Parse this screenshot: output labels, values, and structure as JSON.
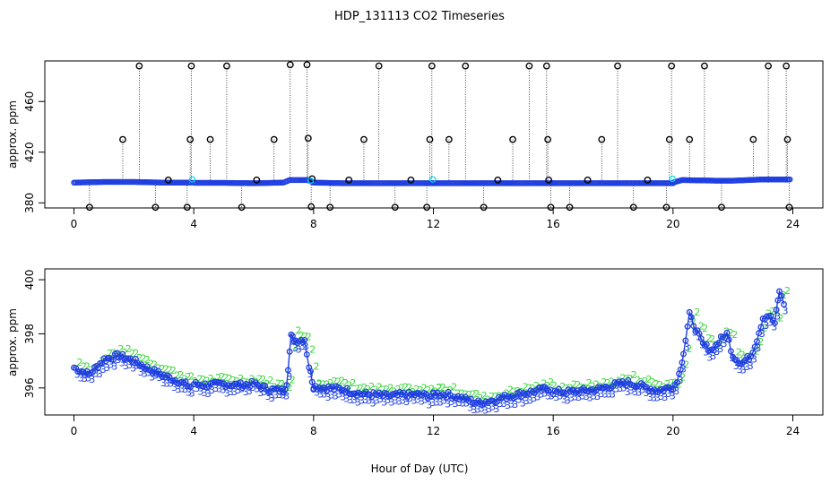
{
  "figure_title": "HDP_131113  CO2 Timeseries",
  "x_label": "Hour of Day (UTC)",
  "colors": {
    "raw": "#000000",
    "flagged": "#00d8e8",
    "averaged": "#1f3fe0",
    "label_3": "#1f3fe0",
    "label_2": "#3ad63a"
  },
  "chart_data": [
    {
      "type": "scatter",
      "ylabel": "approx. ppm",
      "xlim": [
        0,
        24
      ],
      "ylim": [
        376,
        492
      ],
      "x_ticks": [
        0,
        4,
        8,
        12,
        16,
        20,
        24
      ],
      "y_ticks": [
        380,
        420,
        460
      ],
      "baseline_segments": [
        {
          "x": [
            0.0,
            1.0,
            2.0,
            3.0,
            3.9
          ],
          "y": [
            396,
            396.5,
            396.5,
            396,
            396
          ]
        },
        {
          "x": [
            4.0,
            5.0,
            6.0,
            7.0,
            7.2,
            7.8,
            8.0
          ],
          "y": [
            395.8,
            395.8,
            395.5,
            396,
            398,
            398,
            396
          ]
        },
        {
          "x": [
            8.0,
            9.0,
            10.0,
            11.0,
            12.0
          ],
          "y": [
            396,
            395.5,
            395.5,
            395.5,
            395.5
          ]
        },
        {
          "x": [
            12.0,
            13.0,
            14.0,
            15.0,
            16.0
          ],
          "y": [
            395.5,
            395.5,
            395.5,
            395.5,
            395.5
          ]
        },
        {
          "x": [
            16.0,
            17.0,
            18.0,
            19.0,
            20.0
          ],
          "y": [
            395.5,
            395.5,
            395.5,
            395.5,
            395.5
          ]
        },
        {
          "x": [
            20.0,
            20.3,
            20.8,
            21.5,
            22.0,
            23.0,
            23.9
          ],
          "y": [
            396,
            398,
            397.8,
            397.5,
            397.5,
            398.5,
            398.5
          ]
        }
      ],
      "spikes": [
        {
          "x": 2.18,
          "y": 488
        },
        {
          "x": 3.92,
          "y": 488
        },
        {
          "x": 5.1,
          "y": 488
        },
        {
          "x": 7.22,
          "y": 489
        },
        {
          "x": 7.78,
          "y": 489
        },
        {
          "x": 10.18,
          "y": 488
        },
        {
          "x": 11.95,
          "y": 488
        },
        {
          "x": 13.07,
          "y": 488
        },
        {
          "x": 15.2,
          "y": 488
        },
        {
          "x": 15.78,
          "y": 488
        },
        {
          "x": 18.15,
          "y": 488
        },
        {
          "x": 19.95,
          "y": 488
        },
        {
          "x": 21.05,
          "y": 488
        },
        {
          "x": 23.18,
          "y": 488
        },
        {
          "x": 23.78,
          "y": 488
        },
        {
          "x": 1.63,
          "y": 430
        },
        {
          "x": 3.88,
          "y": 430
        },
        {
          "x": 4.55,
          "y": 430
        },
        {
          "x": 6.68,
          "y": 430
        },
        {
          "x": 7.82,
          "y": 431
        },
        {
          "x": 9.68,
          "y": 430
        },
        {
          "x": 11.88,
          "y": 430
        },
        {
          "x": 12.52,
          "y": 430
        },
        {
          "x": 14.65,
          "y": 430
        },
        {
          "x": 15.82,
          "y": 430
        },
        {
          "x": 17.62,
          "y": 430
        },
        {
          "x": 19.88,
          "y": 430
        },
        {
          "x": 20.55,
          "y": 430
        },
        {
          "x": 22.68,
          "y": 430
        },
        {
          "x": 23.82,
          "y": 430
        },
        {
          "x": 0.52,
          "y": 376.5
        },
        {
          "x": 2.72,
          "y": 376.5
        },
        {
          "x": 3.78,
          "y": 376.5
        },
        {
          "x": 5.6,
          "y": 376.5
        },
        {
          "x": 7.92,
          "y": 377
        },
        {
          "x": 8.55,
          "y": 376.5
        },
        {
          "x": 10.72,
          "y": 376.5
        },
        {
          "x": 11.78,
          "y": 376.5
        },
        {
          "x": 13.68,
          "y": 376.5
        },
        {
          "x": 15.92,
          "y": 376.5
        },
        {
          "x": 16.55,
          "y": 376.5
        },
        {
          "x": 18.68,
          "y": 376.5
        },
        {
          "x": 19.78,
          "y": 376.5
        },
        {
          "x": 21.62,
          "y": 376.5
        },
        {
          "x": 23.88,
          "y": 376.5
        },
        {
          "x": 3.15,
          "y": 398
        },
        {
          "x": 6.1,
          "y": 398
        },
        {
          "x": 9.18,
          "y": 398
        },
        {
          "x": 11.25,
          "y": 398
        },
        {
          "x": 14.15,
          "y": 398
        },
        {
          "x": 17.15,
          "y": 398
        },
        {
          "x": 19.15,
          "y": 398
        },
        {
          "x": 7.95,
          "y": 399
        },
        {
          "x": 15.85,
          "y": 398
        }
      ]
    },
    {
      "type": "line",
      "ylabel": "approx. ppm",
      "xlim": [
        0,
        24
      ],
      "ylim": [
        395,
        400.4
      ],
      "x_ticks": [
        0,
        4,
        8,
        12,
        16,
        20,
        24
      ],
      "y_ticks": [
        396,
        398,
        400
      ],
      "point_labels": [
        "3",
        "2"
      ],
      "series": [
        {
          "x": [
            0.0,
            0.5,
            1.0,
            1.5,
            2.0,
            2.5,
            3.0,
            3.5,
            3.9
          ],
          "y": [
            396.75,
            396.5,
            397.05,
            397.2,
            397.0,
            396.7,
            396.45,
            396.25,
            396.05
          ]
        },
        {
          "x": [
            4.0,
            4.5,
            5.0,
            5.5,
            6.0,
            6.5,
            7.0,
            7.1,
            7.25,
            7.4,
            7.7,
            7.85,
            8.0
          ],
          "y": [
            396.15,
            396.1,
            396.15,
            396.1,
            396.15,
            395.95,
            395.9,
            396.2,
            397.9,
            397.75,
            397.8,
            396.8,
            396.05
          ]
        },
        {
          "x": [
            8.0,
            8.5,
            9.0,
            9.5,
            10.0,
            10.5,
            11.0,
            11.5,
            12.0
          ],
          "y": [
            396.05,
            396.0,
            395.95,
            395.8,
            395.75,
            395.7,
            395.75,
            395.75,
            395.7
          ]
        },
        {
          "x": [
            12.0,
            12.5,
            13.0,
            13.5,
            14.0,
            14.5,
            15.0,
            15.5,
            15.9
          ],
          "y": [
            395.8,
            395.75,
            395.6,
            395.45,
            395.55,
            395.7,
            395.8,
            395.9,
            396.0
          ]
        },
        {
          "x": [
            16.0,
            16.5,
            17.0,
            17.5,
            18.0,
            18.5,
            19.0,
            19.5,
            20.0
          ],
          "y": [
            395.85,
            395.85,
            395.9,
            395.95,
            396.1,
            396.2,
            396.05,
            395.9,
            396.05
          ]
        },
        {
          "x": [
            20.0,
            20.2,
            20.35,
            20.55,
            20.75,
            21.0,
            21.3,
            21.6,
            21.8,
            22.0,
            22.3,
            22.6,
            22.8,
            23.0,
            23.2,
            23.4,
            23.55,
            23.7
          ],
          "y": [
            395.95,
            396.5,
            397.3,
            398.7,
            398.2,
            397.6,
            397.4,
            397.8,
            398.0,
            397.2,
            396.9,
            397.2,
            397.8,
            398.6,
            398.7,
            398.4,
            399.6,
            399.1
          ]
        }
      ]
    }
  ]
}
